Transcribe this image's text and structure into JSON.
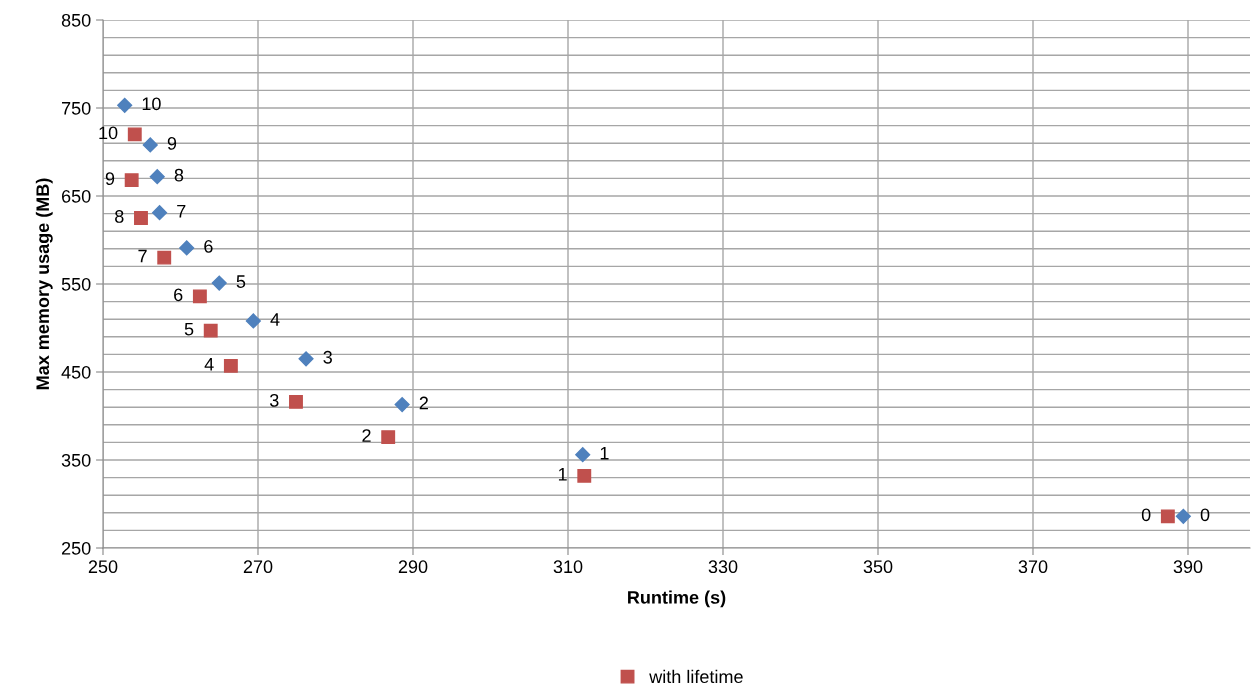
{
  "chart_data": {
    "type": "scatter",
    "xlabel": "Runtime (s)",
    "ylabel": "Max memory usage (MB)",
    "series": [
      {
        "color": "#4f81bd",
        "marker": "diamond",
        "x": [
          389.4,
          311.9,
          288.6,
          276.2,
          269.4,
          265.0,
          260.8,
          257.3,
          257.0,
          256.1,
          252.8
        ],
        "values": [
          286,
          356,
          413,
          465,
          508,
          551,
          591,
          631,
          672,
          708,
          753
        ]
      },
      {
        "name": "with lifetime",
        "color": "#c0504d",
        "marker": "square",
        "x": [
          387.4,
          312.1,
          286.8,
          274.9,
          266.5,
          263.9,
          262.5,
          257.9,
          254.9,
          253.7,
          254.1
        ],
        "values": [
          286,
          332,
          376,
          416,
          457,
          497,
          536,
          580,
          625,
          668,
          720
        ]
      }
    ],
    "annotations": [
      {
        "text": "0",
        "x": 389.4,
        "y": 286
      },
      {
        "text": "0",
        "x": 387.4,
        "y": 286
      },
      {
        "text": "1",
        "x": 311.9,
        "y": 356
      },
      {
        "text": "1",
        "x": 312.1,
        "y": 332
      },
      {
        "text": "2",
        "x": 288.6,
        "y": 413
      },
      {
        "text": "2",
        "x": 286.8,
        "y": 376
      },
      {
        "text": "3",
        "x": 276.2,
        "y": 465
      },
      {
        "text": "3",
        "x": 274.9,
        "y": 416
      },
      {
        "text": "4",
        "x": 269.4,
        "y": 508
      },
      {
        "text": "4",
        "x": 266.5,
        "y": 457
      },
      {
        "text": "5",
        "x": 265.0,
        "y": 551
      },
      {
        "text": "5",
        "x": 263.9,
        "y": 497
      },
      {
        "text": "6",
        "x": 260.8,
        "y": 591
      },
      {
        "text": "6",
        "x": 262.5,
        "y": 536
      },
      {
        "text": "7",
        "x": 257.3,
        "y": 631
      },
      {
        "text": "7",
        "x": 257.9,
        "y": 580
      },
      {
        "text": "8",
        "x": 257.0,
        "y": 672
      },
      {
        "text": "8",
        "x": 254.9,
        "y": 625
      },
      {
        "text": "9",
        "x": 256.1,
        "y": 708
      },
      {
        "text": "9",
        "x": 253.7,
        "y": 668
      },
      {
        "text": "10",
        "x": 252.8,
        "y": 753
      },
      {
        "text": "10",
        "x": 254.1,
        "y": 720
      }
    ],
    "xlim": [
      250,
      398
    ],
    "xticks": [
      250,
      270,
      290,
      310,
      330,
      350,
      370,
      390
    ],
    "ylim": [
      250,
      850
    ],
    "yticks": [
      250,
      {
        "value": 270,
        "label": null
      },
      {
        "value": 290,
        "label": null
      },
      {
        "value": 310,
        "label": null
      },
      {
        "value": 330,
        "label": null
      },
      350,
      {
        "value": 370,
        "label": null
      },
      {
        "value": 390,
        "label": null
      },
      {
        "value": 410,
        "label": null
      },
      {
        "value": 430,
        "label": null
      },
      450,
      {
        "value": 470,
        "label": null
      },
      {
        "value": 490,
        "label": null
      },
      {
        "value": 510,
        "label": null
      },
      {
        "value": 530,
        "label": null
      },
      550,
      {
        "value": 570,
        "label": null
      },
      {
        "value": 590,
        "label": null
      },
      {
        "value": 610,
        "label": null
      },
      {
        "value": 630,
        "label": null
      },
      650,
      {
        "value": 670,
        "label": null
      },
      {
        "value": 690,
        "label": null
      },
      {
        "value": 710,
        "label": null
      },
      {
        "value": 730,
        "label": null
      },
      750,
      {
        "value": 770,
        "label": null
      },
      {
        "value": 790,
        "label": null
      },
      {
        "value": 810,
        "label": null
      },
      {
        "value": 830,
        "label": null
      },
      850
    ],
    "grid": true,
    "legend": "bottom"
  }
}
